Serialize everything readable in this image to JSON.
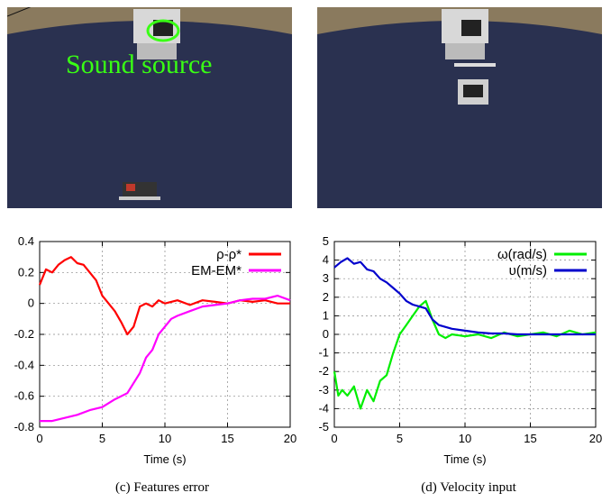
{
  "photos": [
    {
      "annotation": "Sound source",
      "colors": {
        "floor": "#2a3150",
        "wall": "#8a7a5e",
        "annotation": "#39ff14"
      }
    },
    {
      "annotation": "",
      "colors": {
        "floor": "#2a3150",
        "wall": "#8a7a5e"
      }
    }
  ],
  "captions": [
    "(c) Features error",
    "(d) Velocity input"
  ],
  "chart_data": [
    {
      "type": "line",
      "xlabel": "Time (s)",
      "ylabel": "",
      "xlim": [
        0,
        20
      ],
      "ylim": [
        -0.8,
        0.4
      ],
      "xticks": [
        "0",
        "5",
        "10",
        "15",
        "20"
      ],
      "yticks": [
        "0.4",
        "0.2",
        "0",
        "-0.2",
        "-0.4",
        "-0.6",
        "-0.8"
      ],
      "grid": true,
      "legend_position": "top-right",
      "series": [
        {
          "name": "ρ-ρ*",
          "color": "#ff0000",
          "x": [
            0,
            0.5,
            1,
            1.5,
            2,
            2.5,
            3,
            3.5,
            4,
            4.5,
            5,
            5.5,
            6,
            6.5,
            7,
            7.5,
            8,
            8.5,
            9,
            9.5,
            10,
            11,
            12,
            13,
            14,
            15,
            16,
            17,
            18,
            19,
            20
          ],
          "y": [
            0.12,
            0.22,
            0.2,
            0.25,
            0.28,
            0.3,
            0.26,
            0.25,
            0.2,
            0.15,
            0.05,
            0.0,
            -0.05,
            -0.12,
            -0.2,
            -0.15,
            -0.02,
            0.0,
            -0.02,
            0.02,
            0.0,
            0.02,
            -0.01,
            0.02,
            0.01,
            0.0,
            0.02,
            0.01,
            0.02,
            0.0,
            0.0
          ]
        },
        {
          "name": "EM-EM*",
          "color": "#ff00ff",
          "x": [
            0,
            1,
            2,
            3,
            4,
            5,
            6,
            7,
            8,
            8.5,
            9,
            9.5,
            10,
            10.5,
            11,
            12,
            13,
            14,
            15,
            16,
            17,
            18,
            19,
            20
          ],
          "y": [
            -0.76,
            -0.76,
            -0.74,
            -0.72,
            -0.69,
            -0.67,
            -0.62,
            -0.58,
            -0.45,
            -0.35,
            -0.3,
            -0.2,
            -0.15,
            -0.1,
            -0.08,
            -0.05,
            -0.02,
            -0.01,
            0.0,
            0.02,
            0.03,
            0.03,
            0.05,
            0.02
          ]
        }
      ]
    },
    {
      "type": "line",
      "xlabel": "Time (s)",
      "ylabel": "",
      "xlim": [
        0,
        20
      ],
      "ylim": [
        -5,
        5
      ],
      "xticks": [
        "0",
        "5",
        "10",
        "15",
        "20"
      ],
      "yticks": [
        "5",
        "4",
        "3",
        "2",
        "1",
        "0",
        "-1",
        "-2",
        "-3",
        "-4",
        "-5"
      ],
      "grid": true,
      "legend_position": "top-right",
      "series": [
        {
          "name": "ω(rad/s)",
          "color": "#00ee00",
          "x": [
            0,
            0.3,
            0.6,
            1,
            1.5,
            2,
            2.5,
            3,
            3.5,
            4,
            4.5,
            5,
            5.5,
            6,
            6.5,
            7,
            7.5,
            8,
            8.5,
            9,
            10,
            11,
            12,
            13,
            14,
            15,
            16,
            17,
            18,
            19,
            20
          ],
          "y": [
            -2.0,
            -3.3,
            -3.0,
            -3.3,
            -2.8,
            -4.0,
            -3.0,
            -3.6,
            -2.5,
            -2.2,
            -1.0,
            0.0,
            0.5,
            1.0,
            1.5,
            1.8,
            0.8,
            0.0,
            -0.2,
            0.0,
            -0.1,
            0.0,
            -0.2,
            0.1,
            -0.1,
            0.0,
            0.1,
            -0.1,
            0.2,
            0.0,
            0.1
          ]
        },
        {
          "name": "υ(m/s)",
          "color": "#0000cc",
          "x": [
            0,
            0.5,
            1,
            1.5,
            2,
            2.5,
            3,
            3.5,
            4,
            4.5,
            5,
            5.5,
            6,
            6.5,
            7,
            7.5,
            8,
            9,
            10,
            11,
            12,
            13,
            14,
            15,
            16,
            17,
            18,
            19,
            20
          ],
          "y": [
            3.6,
            3.9,
            4.1,
            3.8,
            3.9,
            3.5,
            3.4,
            3.0,
            2.8,
            2.5,
            2.2,
            1.8,
            1.6,
            1.5,
            1.4,
            0.8,
            0.5,
            0.3,
            0.2,
            0.1,
            0.05,
            0.05,
            0.0,
            0.0,
            0.0,
            0.0,
            0.0,
            0.0,
            0.0
          ]
        }
      ]
    }
  ]
}
